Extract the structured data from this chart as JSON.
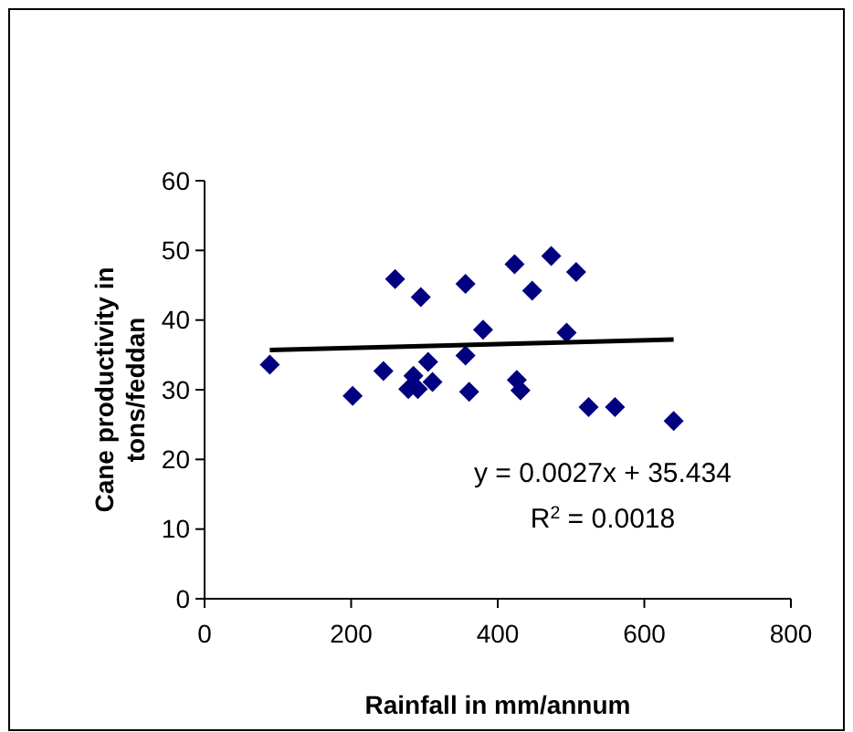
{
  "chart_data": {
    "type": "scatter",
    "xlabel": "Rainfall in mm/annum",
    "ylabel": "Cane productivity in tons/feddan",
    "xlim": [
      0,
      800
    ],
    "xticks": [
      0,
      200,
      400,
      600,
      800
    ],
    "ylim": [
      0,
      60
    ],
    "yticks": [
      0,
      10,
      20,
      30,
      40,
      50,
      60
    ],
    "grid": false,
    "marker": "diamond",
    "series": [
      {
        "color": "#000080",
        "x": [
          89,
          202,
          244,
          260,
          278,
          285,
          291,
          295,
          305,
          311,
          356,
          356,
          361,
          380,
          423,
          426,
          431,
          447,
          473,
          494,
          507,
          524,
          560,
          640
        ],
        "values": [
          33.6,
          29.1,
          32.7,
          45.9,
          30.1,
          32.0,
          30.1,
          43.3,
          34.0,
          31.1,
          45.2,
          34.9,
          29.7,
          38.6,
          48.0,
          31.4,
          29.9,
          44.2,
          49.2,
          38.2,
          46.9,
          27.5,
          27.5,
          25.5
        ]
      },
      {
        "type": "line",
        "color": "#000000",
        "marker": "none",
        "x": [
          89,
          640
        ],
        "values": [
          35.7,
          37.2
        ]
      }
    ],
    "annotations": [
      "y = 0.0027x + 35.434",
      "R$^{2}$ = 0.0018"
    ]
  }
}
